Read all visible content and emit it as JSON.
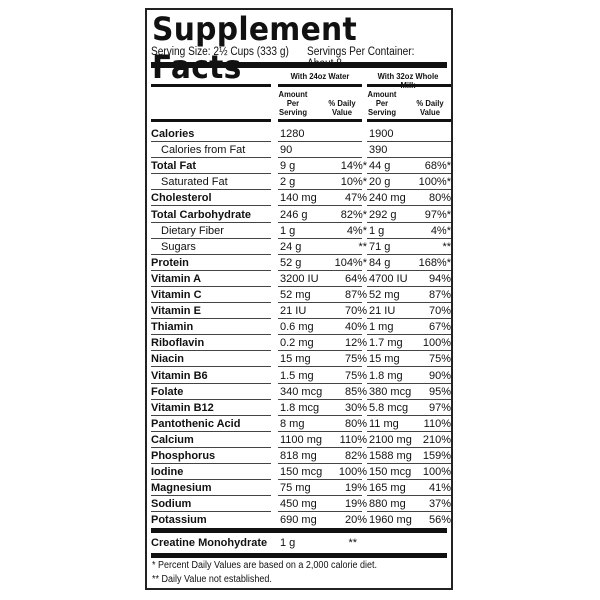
{
  "title": "Supplement Facts",
  "serving_size": "Serving Size: 2½ Cups (333 g)",
  "servings_per_container": "Servings Per Container: About 8",
  "columns": [
    {
      "name": "With 24oz Water",
      "amount": "Amount Per Serving",
      "dv": "% Daily Value"
    },
    {
      "name": "With 32oz Whole Milk",
      "amount": "Amount Per Serving",
      "dv": "% Daily Value"
    }
  ],
  "rows": [
    {
      "label": "Calories",
      "bold": true,
      "a1": "1280",
      "d1": "",
      "a2": "1900",
      "d2": ""
    },
    {
      "label": "Calories from Fat",
      "bold": false,
      "a1": "90",
      "d1": "",
      "a2": "390",
      "d2": ""
    },
    {
      "label": "Total Fat",
      "bold": true,
      "a1": "9 g",
      "d1": "14%*",
      "a2": "44 g",
      "d2": "68%*"
    },
    {
      "label": "Saturated Fat",
      "bold": false,
      "a1": "2 g",
      "d1": "10%*",
      "a2": "20 g",
      "d2": "100%*"
    },
    {
      "label": "Cholesterol",
      "bold": true,
      "a1": "140 mg",
      "d1": "47%",
      "a2": "240 mg",
      "d2": "80%"
    },
    {
      "label": "Total Carbohydrate",
      "bold": true,
      "a1": "246 g",
      "d1": "82%*",
      "a2": "292 g",
      "d2": "97%*"
    },
    {
      "label": "Dietary Fiber",
      "bold": false,
      "a1": "1 g",
      "d1": "4%*",
      "a2": "1 g",
      "d2": "4%*"
    },
    {
      "label": "Sugars",
      "bold": false,
      "a1": "24 g",
      "d1": "**",
      "a2": "71 g",
      "d2": "**"
    },
    {
      "label": "Protein",
      "bold": true,
      "a1": "52 g",
      "d1": "104%*",
      "a2": "84 g",
      "d2": "168%*"
    },
    {
      "label": "Vitamin A",
      "bold": true,
      "a1": "3200 IU",
      "d1": "64%",
      "a2": "4700 IU",
      "d2": "94%"
    },
    {
      "label": "Vitamin C",
      "bold": true,
      "a1": "52 mg",
      "d1": "87%",
      "a2": "52 mg",
      "d2": "87%"
    },
    {
      "label": "Vitamin E",
      "bold": true,
      "a1": "21 IU",
      "d1": "70%",
      "a2": "21 IU",
      "d2": "70%"
    },
    {
      "label": "Thiamin",
      "bold": true,
      "a1": "0.6 mg",
      "d1": "40%",
      "a2": "1 mg",
      "d2": "67%"
    },
    {
      "label": "Riboflavin",
      "bold": true,
      "a1": "0.2 mg",
      "d1": "12%",
      "a2": "1.7 mg",
      "d2": "100%"
    },
    {
      "label": "Niacin",
      "bold": true,
      "a1": "15 mg",
      "d1": "75%",
      "a2": "15 mg",
      "d2": "75%"
    },
    {
      "label": "Vitamin B6",
      "bold": true,
      "a1": "1.5 mg",
      "d1": "75%",
      "a2": "1.8 mg",
      "d2": "90%"
    },
    {
      "label": "Folate",
      "bold": true,
      "a1": "340 mcg",
      "d1": "85%",
      "a2": "380 mcg",
      "d2": "95%"
    },
    {
      "label": "Vitamin B12",
      "bold": true,
      "a1": "1.8 mcg",
      "d1": "30%",
      "a2": "5.8 mcg",
      "d2": "97%"
    },
    {
      "label": "Pantothenic Acid",
      "bold": true,
      "a1": "8 mg",
      "d1": "80%",
      "a2": "11 mg",
      "d2": "110%"
    },
    {
      "label": "Calcium",
      "bold": true,
      "a1": "1100 mg",
      "d1": "110%",
      "a2": "2100 mg",
      "d2": "210%"
    },
    {
      "label": "Phosphorus",
      "bold": true,
      "a1": "818 mg",
      "d1": "82%",
      "a2": "1588 mg",
      "d2": "159%"
    },
    {
      "label": "Iodine",
      "bold": true,
      "a1": "150 mcg",
      "d1": "100%",
      "a2": "150 mcg",
      "d2": "100%"
    },
    {
      "label": "Magnesium",
      "bold": true,
      "a1": "75 mg",
      "d1": "19%",
      "a2": "165 mg",
      "d2": "41%"
    },
    {
      "label": "Sodium",
      "bold": true,
      "a1": "450 mg",
      "d1": "19%",
      "a2": "880 mg",
      "d2": "37%"
    },
    {
      "label": "Potassium",
      "bold": true,
      "a1": "690 mg",
      "d1": "20%",
      "a2": "1960 mg",
      "d2": "56%"
    }
  ],
  "creatine": {
    "label": "Creatine Monohydrate",
    "amount": "1 g",
    "dv": "**"
  },
  "footnotes": [
    "* Percent Daily Values are based on a 2,000 calorie diet.",
    "** Daily Value not established."
  ]
}
